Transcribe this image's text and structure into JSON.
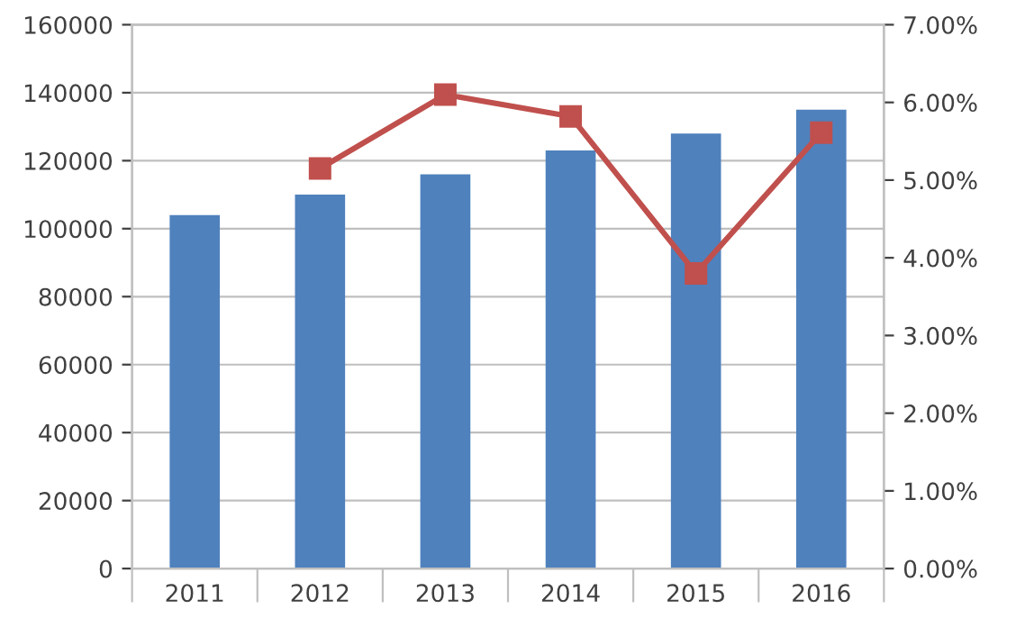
{
  "chart_data": {
    "type": "bar",
    "categories": [
      "2011",
      "2012",
      "2013",
      "2014",
      "2015",
      "2016"
    ],
    "series": [
      {
        "color": "#4f81bd",
        "values": [
          104000,
          110000,
          116000,
          123000,
          128000,
          135000
        ]
      },
      {
        "type": "line",
        "axis": "y2",
        "color": "#c0504d",
        "marker": "square",
        "values": [
          null,
          5.15,
          6.1,
          5.82,
          3.8,
          5.61
        ]
      }
    ],
    "ylim": [
      0,
      160000
    ],
    "yticks": [
      0,
      20000,
      40000,
      60000,
      80000,
      100000,
      120000,
      140000,
      160000
    ],
    "y2lim": [
      0,
      7
    ],
    "y2ticks": [
      {
        "value": 0,
        "label": "0.00%"
      },
      {
        "value": 1,
        "label": "1.00%"
      },
      {
        "value": 2,
        "label": "2.00%"
      },
      {
        "value": 3,
        "label": "3.00%"
      },
      {
        "value": 4,
        "label": "4.00%"
      },
      {
        "value": 5,
        "label": "5.00%"
      },
      {
        "value": 6,
        "label": "6.00%"
      },
      {
        "value": 7,
        "label": "7.00%"
      }
    ],
    "grid": "y",
    "legend": false
  }
}
